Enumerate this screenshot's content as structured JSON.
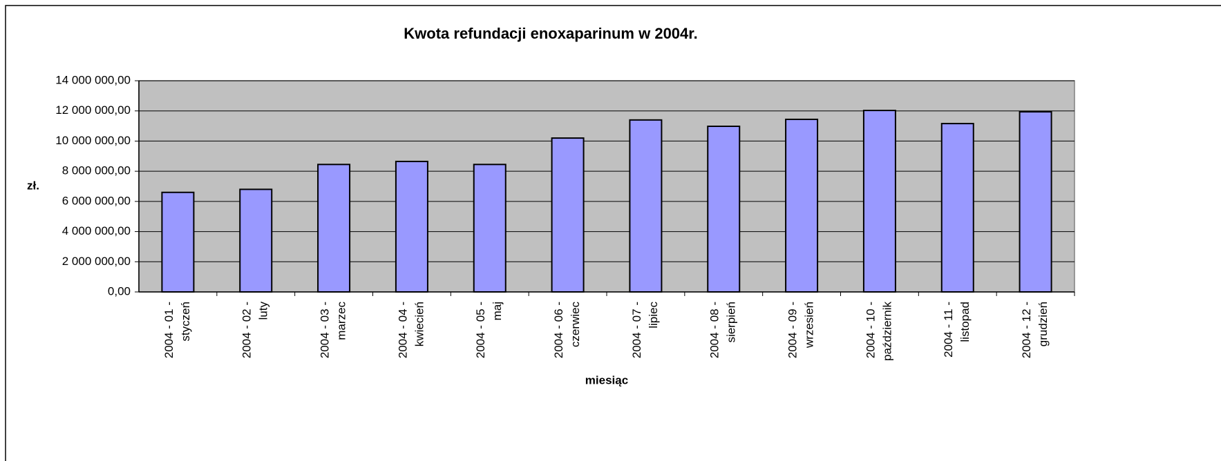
{
  "chart_data": {
    "type": "bar",
    "title": "Kwota refundacji enoxaparinum w 2004r.",
    "x_label": "miesiąc",
    "y_label": "zł.",
    "categories": [
      [
        "2004 - 01 -",
        "styczeń"
      ],
      [
        "2004 - 02 -",
        "luty"
      ],
      [
        "2004 - 03 -",
        "marzec"
      ],
      [
        "2004 - 04 -",
        "kwiecień"
      ],
      [
        "2004 - 05 -",
        "maj"
      ],
      [
        "2004 - 06 -",
        "czerwiec"
      ],
      [
        "2004 - 07 -",
        "lipiec"
      ],
      [
        "2004 - 08 -",
        "sierpień"
      ],
      [
        "2004 - 09 -",
        "wrzesień"
      ],
      [
        "2004 - 10 -",
        "październik"
      ],
      [
        "2004 - 11 -",
        "listopad"
      ],
      [
        "2004 - 12 -",
        "grudzień"
      ]
    ],
    "values": [
      6600000,
      6800000,
      8450000,
      8650000,
      8450000,
      10200000,
      11400000,
      10980000,
      11440000,
      12030000,
      11160000,
      11940000
    ],
    "color": "#9999ff",
    "plot_background": "#c0c0c0",
    "ylim": [
      0,
      14000000
    ],
    "yticks": [
      {
        "value": 0,
        "label": "0,00"
      },
      {
        "value": 2000000,
        "label": "2 000 000,00"
      },
      {
        "value": 4000000,
        "label": "4 000 000,00"
      },
      {
        "value": 6000000,
        "label": "6 000 000,00"
      },
      {
        "value": 8000000,
        "label": "8 000 000,00"
      },
      {
        "value": 10000000,
        "label": "10 000 000,00"
      },
      {
        "value": 12000000,
        "label": "12 000 000,00"
      },
      {
        "value": 14000000,
        "label": "14 000 000,00"
      }
    ],
    "grid": true
  }
}
